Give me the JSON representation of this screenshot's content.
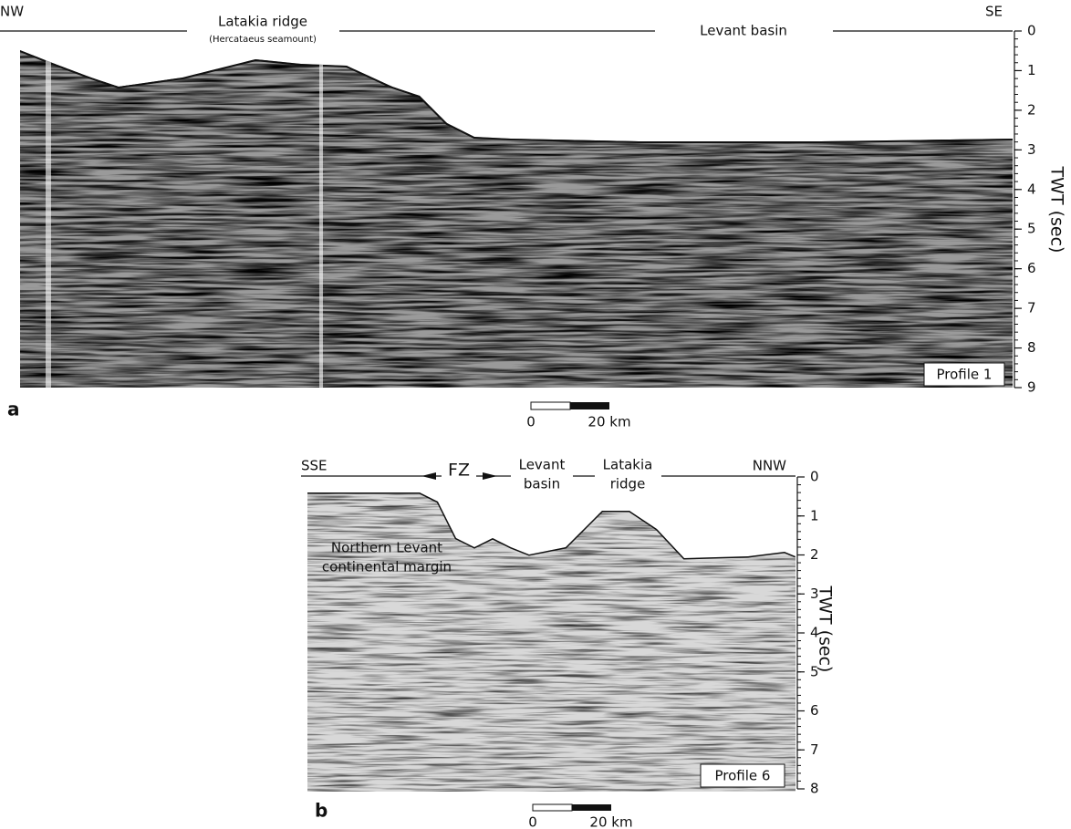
{
  "panels": [
    {
      "label": "a",
      "left_direction": "NW",
      "right_direction": "SE",
      "feature_1": [
        "Latakia ridge",
        "(Hercataeus seamount)"
      ],
      "feature_2": [
        "Levant basin"
      ],
      "axis_title": "TWT (sec)",
      "ticks": [
        0,
        1,
        2,
        3,
        4,
        5,
        6,
        7,
        8,
        9
      ],
      "profile": "Profile 1",
      "scale_bar": [
        "0",
        "20 km"
      ]
    },
    {
      "label": "b",
      "left_direction": "SSE",
      "right_direction": "NNW",
      "zone": "FZ",
      "feature_1": [
        "Levant",
        "basin"
      ],
      "feature_2": [
        "Latakia",
        "ridge"
      ],
      "margin_label": [
        "Northern Levant",
        "continental margin"
      ],
      "axis_title": "TWT (sec)",
      "ticks": [
        0,
        1,
        2,
        3,
        4,
        5,
        6,
        7,
        8
      ],
      "profile": "Profile 6",
      "scale_bar": [
        "0",
        "20 km"
      ]
    }
  ]
}
